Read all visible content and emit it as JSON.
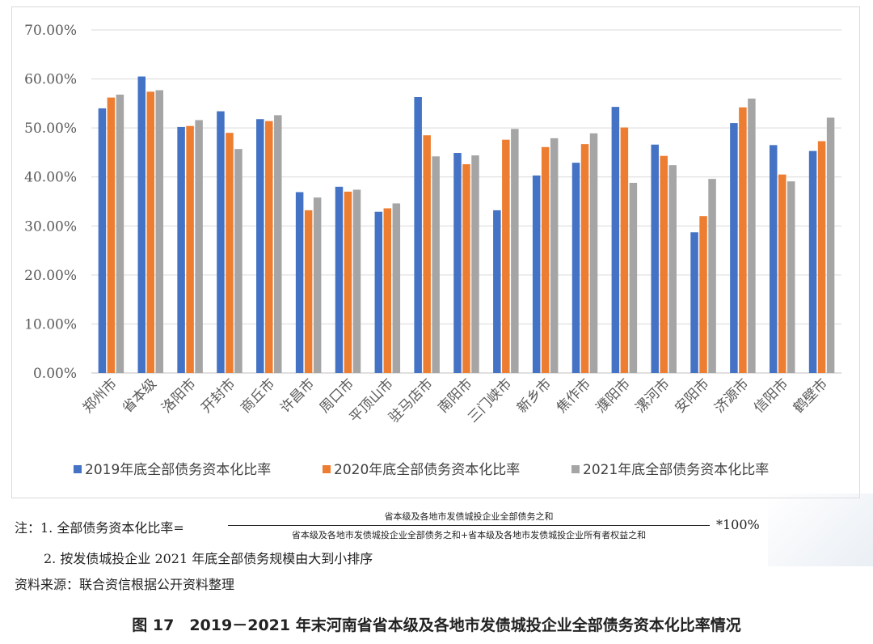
{
  "chart_data": {
    "type": "bar",
    "categories": [
      "郑州市",
      "省本级",
      "洛阳市",
      "开封市",
      "商丘市",
      "许昌市",
      "周口市",
      "平顶山市",
      "驻马店市",
      "南阳市",
      "三门峡市",
      "新乡市",
      "焦作市",
      "濮阳市",
      "漯河市",
      "安阳市",
      "济源市",
      "信阳市",
      "鹤壁市"
    ],
    "series": [
      {
        "name": "2019年底全部债务资本化比率",
        "color": "#4472C4",
        "values": [
          54.0,
          60.5,
          50.2,
          53.4,
          51.8,
          36.9,
          38.0,
          32.9,
          56.3,
          44.9,
          33.2,
          40.3,
          42.9,
          54.3,
          46.6,
          28.7,
          51.0,
          46.5,
          45.3
        ]
      },
      {
        "name": "2020年底全部债务资本化比率",
        "color": "#ED7D31",
        "values": [
          56.2,
          57.4,
          50.4,
          49.0,
          51.4,
          33.2,
          37.0,
          33.6,
          48.5,
          42.6,
          47.6,
          46.1,
          46.7,
          50.1,
          44.3,
          32.0,
          54.2,
          40.5,
          47.3
        ]
      },
      {
        "name": "2021年底全部债务资本化比率",
        "color": "#A5A5A5",
        "values": [
          56.8,
          57.7,
          51.6,
          45.7,
          52.6,
          35.8,
          37.4,
          34.6,
          44.2,
          44.4,
          49.8,
          47.9,
          48.9,
          38.8,
          42.4,
          39.6,
          56.0,
          39.1,
          52.1
        ]
      }
    ],
    "yTicks": [
      "0.00%",
      "10.00%",
      "20.00%",
      "30.00%",
      "40.00%",
      "50.00%",
      "60.00%",
      "70.00%"
    ],
    "ylim": [
      0,
      70
    ],
    "grid": true,
    "legend_position": "bottom"
  },
  "notes": {
    "note1_prefix": "注：1. 全部债务资本化比率=",
    "numerator": "省本级及各地市发债城投企业全部债务之和",
    "denominator": "省本级及各地市发债城投企业全部债务之和+省本级及各地市发债城投企业所有者权益之和",
    "suffix": "*100%",
    "note2": "2. 按发债城投企业 2021 年底全部债务规模由大到小排序",
    "source": "资料来源：联合资信根据公开资料整理"
  },
  "caption": "图 17　2019－2021 年末河南省省本级及各地市发债城投企业全部债务资本化比率情况"
}
